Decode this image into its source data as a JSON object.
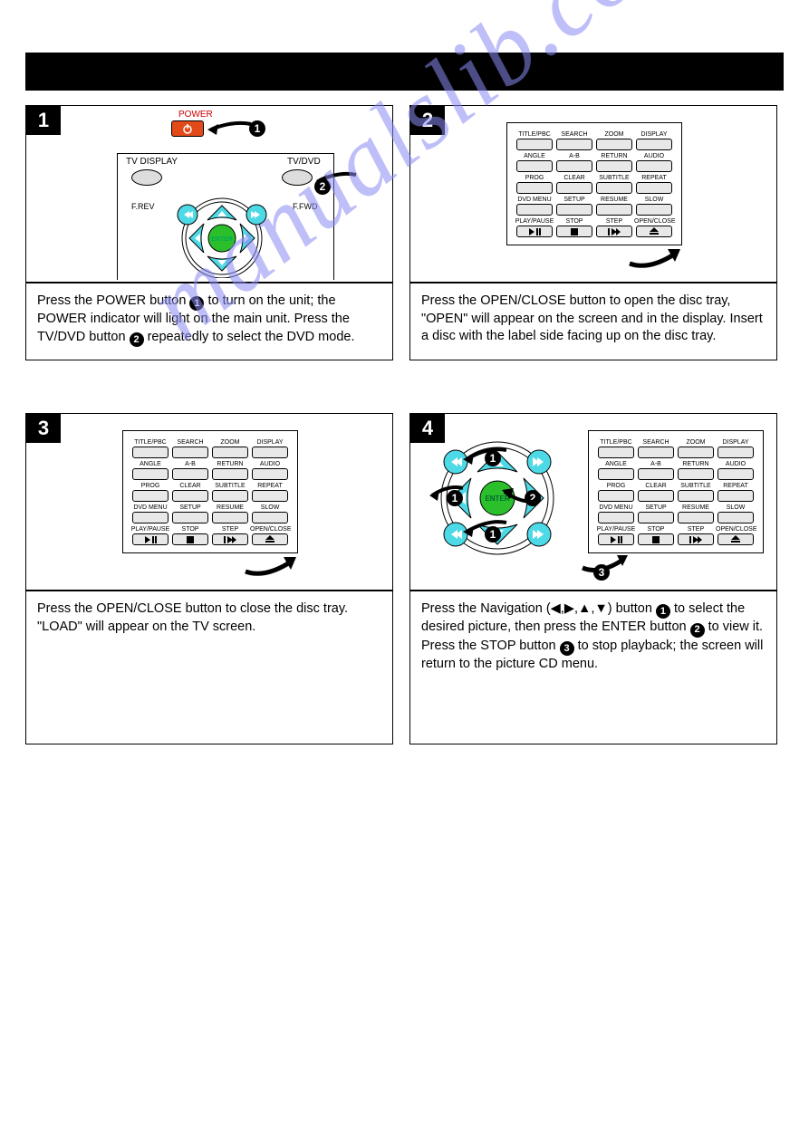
{
  "watermark_text": "manualslib.com",
  "header": {
    "title": ""
  },
  "colors": {
    "highlight_cyan": "#4dd9e6",
    "enter_green": "#2bbf2b",
    "power_orange": "#e34a1a",
    "power_label": "#cc0000",
    "watermark": "#8a8af5"
  },
  "button_rows": [
    [
      {
        "label": "TITLE/PBC",
        "icon": null
      },
      {
        "label": "SEARCH",
        "icon": null
      },
      {
        "label": "ZOOM",
        "icon": null
      },
      {
        "label": "DISPLAY",
        "icon": null
      }
    ],
    [
      {
        "label": "ANGLE",
        "icon": null
      },
      {
        "label": "A-B",
        "icon": null
      },
      {
        "label": "RETURN",
        "icon": null
      },
      {
        "label": "AUDIO",
        "icon": null
      }
    ],
    [
      {
        "label": "PROG",
        "icon": null
      },
      {
        "label": "CLEAR",
        "icon": null
      },
      {
        "label": "SUBTITLE",
        "icon": null
      },
      {
        "label": "REPEAT",
        "icon": null
      }
    ],
    [
      {
        "label": "DVD MENU",
        "icon": null
      },
      {
        "label": "SETUP",
        "icon": null
      },
      {
        "label": "RESUME",
        "icon": null
      },
      {
        "label": "SLOW",
        "icon": null
      }
    ],
    [
      {
        "label": "PLAY/PAUSE",
        "icon": "playpause"
      },
      {
        "label": "STOP",
        "icon": "stop"
      },
      {
        "label": "STEP",
        "icon": "step"
      },
      {
        "label": "OPEN/CLOSE",
        "icon": "eject"
      }
    ]
  ],
  "panel1": {
    "step": "1",
    "labels": {
      "power": "POWER",
      "tv_display": "TV DISPLAY",
      "tv_dvd": "TV/DVD",
      "frev": "F.REV",
      "ffwd": "F.FWD",
      "enter": "ENTER"
    },
    "callouts": [
      "1",
      "2"
    ],
    "text_parts": [
      "Press the POWER button ",
      " to turn on the unit; the POWER indicator will light on the main unit. Press the TV/DVD button ",
      " repeatedly to select the DVD mode."
    ]
  },
  "panel2": {
    "step": "2",
    "text": "Press the OPEN/CLOSE button to open the disc tray, \"OPEN\" will appear on the screen and in the display. Insert a disc with the label side facing up on the disc tray."
  },
  "panel3": {
    "step": "3",
    "text": "Press the OPEN/CLOSE button to close the disc tray. \"LOAD\" will appear on the TV screen."
  },
  "panel4": {
    "step": "4",
    "callouts": [
      "1",
      "1",
      "1",
      "2",
      "3"
    ],
    "nav_symbols": "(◀,▶,▲,▼)",
    "text_parts": [
      "Press the Navigation ",
      " button ",
      " to select the desired picture, then press the ENTER button ",
      " to view it. Press the STOP button ",
      " to stop playback; the screen will return to the picture CD menu."
    ]
  }
}
